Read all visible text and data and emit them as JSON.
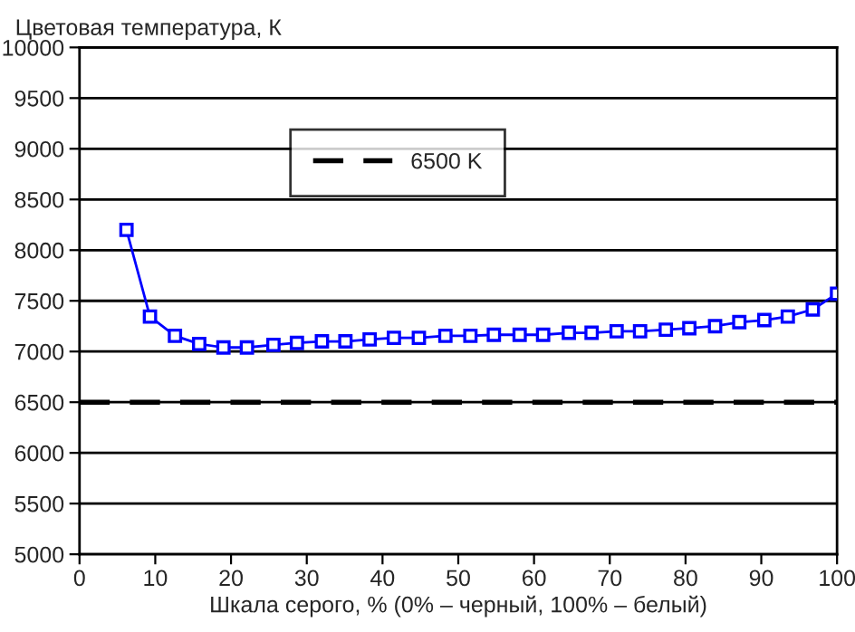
{
  "chart_data": {
    "type": "line",
    "ylabel": "Цветовая температура, К",
    "xlabel": "Шкала серого, % (0% – черный, 100% – белый)",
    "x": [
      6.2,
      9.3,
      12.6,
      15.8,
      19.0,
      22.1,
      25.6,
      28.7,
      32.0,
      35.1,
      38.3,
      41.5,
      44.8,
      48.3,
      51.6,
      54.7,
      58.1,
      61.2,
      64.6,
      67.6,
      70.9,
      74.0,
      77.4,
      80.5,
      83.9,
      87.1,
      90.4,
      93.5,
      96.8,
      100
    ],
    "series": [
      {
        "color": "#0000ff",
        "values": [
          8200,
          7345,
          7155,
          7075,
          7040,
          7040,
          7065,
          7085,
          7100,
          7100,
          7120,
          7135,
          7135,
          7155,
          7155,
          7165,
          7165,
          7165,
          7185,
          7185,
          7200,
          7200,
          7215,
          7230,
          7250,
          7290,
          7310,
          7345,
          7415,
          7570
        ]
      }
    ],
    "marker": "square",
    "line_style": "solid",
    "ref_lines": [
      {
        "axis": "y",
        "value": 6500,
        "label": "6500 K",
        "color": "#000000",
        "line_style": "dashed"
      }
    ],
    "xlim": [
      0,
      100
    ],
    "xticks": [
      0,
      10,
      20,
      30,
      40,
      50,
      60,
      70,
      80,
      90,
      100
    ],
    "ylim": [
      5000,
      10000
    ],
    "yticks": [
      5000,
      5500,
      6000,
      6500,
      7000,
      7500,
      8000,
      8500,
      9000,
      9500,
      10000
    ],
    "grid": "y",
    "legend": "top"
  }
}
